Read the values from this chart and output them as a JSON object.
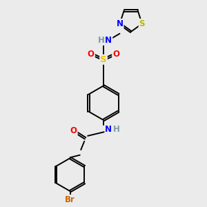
{
  "background_color": "#ebebeb",
  "bond_color": "#000000",
  "atom_colors": {
    "N": "#0000ff",
    "O": "#ff0000",
    "S_sulfonyl": "#e6c800",
    "S_thiazole": "#b8b800",
    "Br": "#cc6600",
    "H": "#7a9aaa",
    "C": "#000000"
  },
  "font_size": 8.5,
  "bond_lw": 1.4,
  "sep": 0.09
}
